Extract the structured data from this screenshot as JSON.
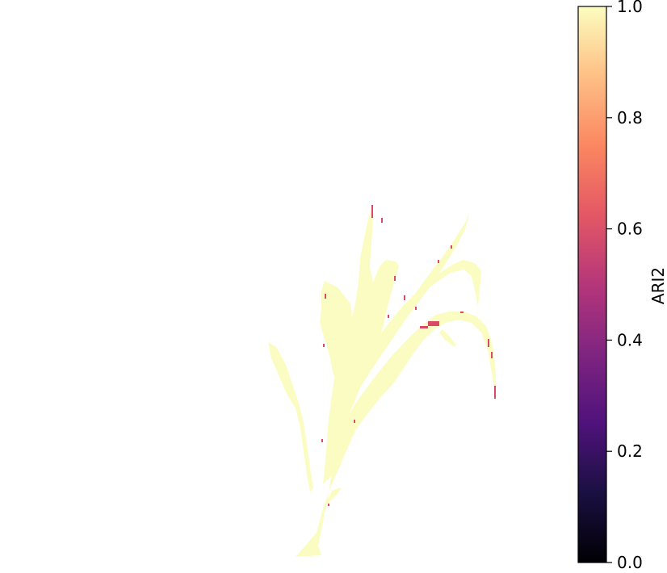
{
  "colorbar": {
    "label": "ARI2",
    "colormap": "magma",
    "range": [
      0.0,
      1.0
    ],
    "ticks": [
      {
        "value": 0.0,
        "text": "0.0"
      },
      {
        "value": 0.2,
        "text": "0.2"
      },
      {
        "value": 0.4,
        "text": "0.4"
      },
      {
        "value": 0.6,
        "text": "0.6"
      },
      {
        "value": 0.8,
        "text": "0.8"
      },
      {
        "value": 1.0,
        "text": "1.0"
      }
    ]
  },
  "colors": {
    "plant_fill": "#fbfcc1",
    "highlight": "#d84a68",
    "background": "#ffffff"
  }
}
